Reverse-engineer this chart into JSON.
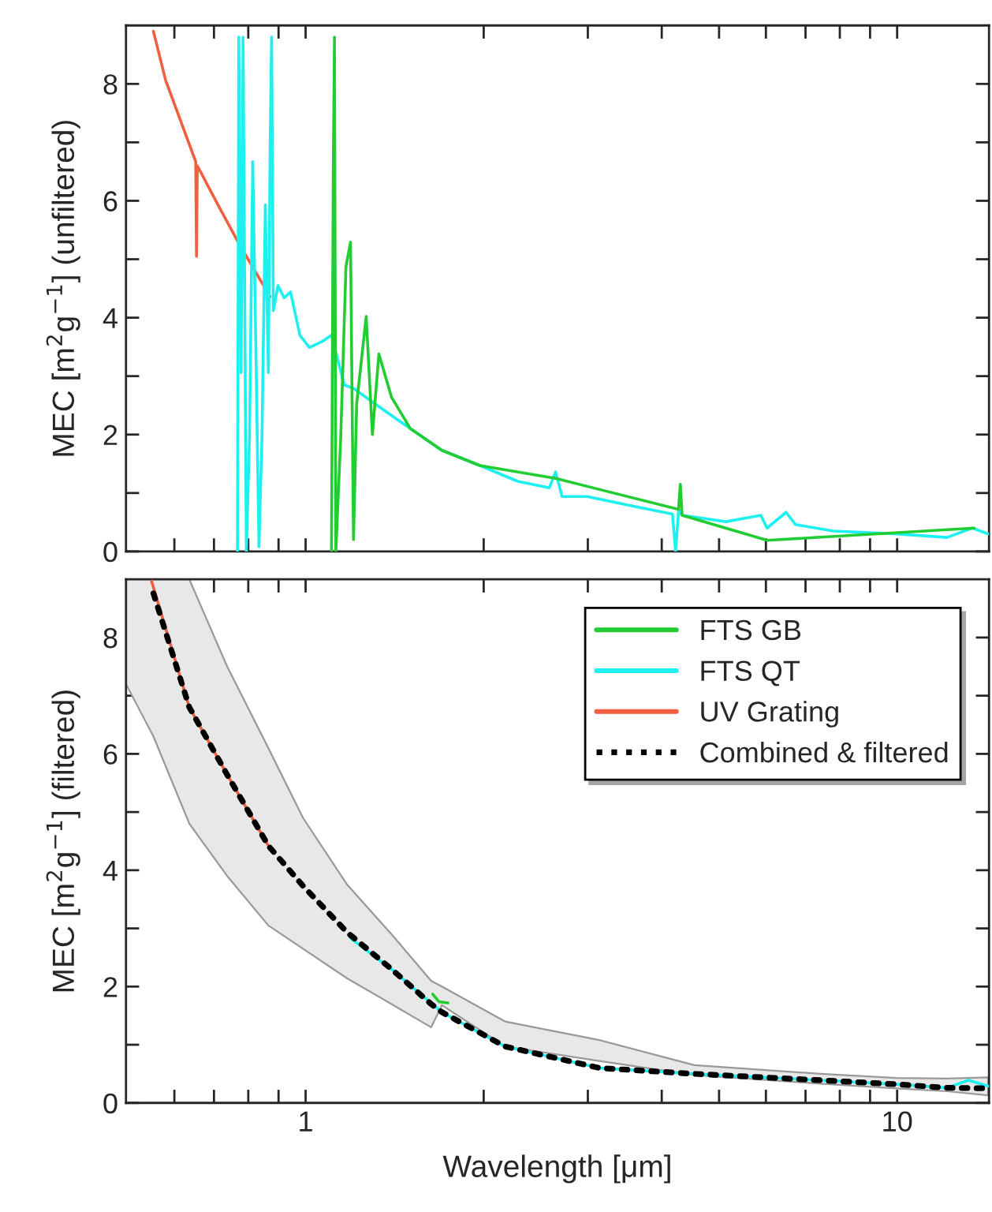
{
  "chart_data": [
    {
      "type": "line",
      "ylabel": "MEC [m$^{2}$g$^{−1}$] (unfiltered)",
      "log": "x",
      "tick_labels": "y",
      "legend": false,
      "grid": false,
      "xlim": [
        0.497,
        14.3
      ],
      "ylim": [
        0,
        9
      ],
      "xticks": [
        {
          "value": 0.6,
          "label": null
        },
        {
          "value": 0.7,
          "label": null
        },
        {
          "value": 0.8,
          "label": null
        },
        {
          "value": 0.9,
          "label": null
        },
        1,
        {
          "value": 2,
          "label": null
        },
        {
          "value": 3,
          "label": null
        },
        {
          "value": 4,
          "label": null
        },
        {
          "value": 5,
          "label": null
        },
        {
          "value": 6,
          "label": null
        },
        {
          "value": 7,
          "label": null
        },
        {
          "value": 8,
          "label": null
        },
        {
          "value": 9,
          "label": null
        },
        10
      ],
      "yticks": [
        0,
        {
          "value": 1,
          "label": null
        },
        2,
        {
          "value": 3,
          "label": null
        },
        4,
        {
          "value": 5,
          "label": null
        },
        6,
        {
          "value": 7,
          "label": null
        },
        8
      ],
      "series": [
        {
          "color": "#22cc33",
          "x": [
            1.106,
            1.114,
            1.119,
            1.125,
            1.147,
            1.17,
            1.191,
            1.205,
            1.22,
            1.266,
            1.297,
            1.33,
            1.397,
            1.504,
            1.7,
            1.971,
            2.646,
            4.27,
            4.3,
            4.33,
            6.03,
            13.5
          ],
          "values": [
            0,
            6.67,
            8.8,
            0,
            2.0,
            4.87,
            5.29,
            0.2,
            2.53,
            4.02,
            2.0,
            3.38,
            2.64,
            2.1,
            1.73,
            1.47,
            1.25,
            0.72,
            1.15,
            0.62,
            0.19,
            0.4
          ]
        },
        {
          "color": "#1ef0f0",
          "x": [
            0.767,
            0.771,
            0.778,
            0.784,
            0.794,
            0.804,
            0.814,
            0.824,
            0.834,
            0.844,
            0.855,
            0.865,
            0.871,
            0.876,
            0.882,
            0.898,
            0.92,
            0.943,
            0.978,
            1.015,
            1.066,
            1.106,
            1.134,
            1.162,
            1.205,
            1.33,
            1.504,
            1.7,
            1.971,
            2.284,
            2.582,
            2.646,
            2.713,
            2.992,
            3.554,
            4.17,
            4.221,
            4.273,
            4.326,
            5.137,
            5.883,
            6.028,
            6.49,
            6.733,
            7.8,
            9.97,
            12.14,
            13.4,
            14.25
          ],
          "values": [
            0,
            8.8,
            3.06,
            8.8,
            0,
            2.0,
            6.67,
            3.49,
            0.08,
            2.0,
            5.93,
            3.06,
            6.89,
            8.8,
            4.12,
            4.55,
            4.34,
            4.44,
            3.7,
            3.49,
            3.59,
            3.7,
            3.27,
            2.85,
            2.79,
            2.48,
            2.1,
            1.73,
            1.47,
            1.2,
            1.09,
            1.36,
            0.94,
            0.94,
            0.78,
            0.64,
            0,
            0.72,
            0.62,
            0.51,
            0.62,
            0.4,
            0.67,
            0.46,
            0.35,
            0.3,
            0.24,
            0.4,
            0.3
          ]
        },
        {
          "color": "#f06040",
          "x": [
            0.553,
            0.58,
            0.652,
            0.654,
            0.656,
            0.711,
            0.774,
            0.871
          ],
          "values": [
            8.9,
            8.06,
            6.67,
            5.05,
            6.6,
            5.93,
            5.24,
            4.36
          ]
        }
      ]
    },
    {
      "type": "line",
      "xlabel": "Wavelength [μm]",
      "ylabel": "MEC [m$^{2}$g$^{−1}$] (filtered)",
      "log": "x",
      "legend": "top right",
      "grid": false,
      "xlim": [
        0.497,
        14.3
      ],
      "ylim": [
        0,
        9
      ],
      "xticks": [
        {
          "value": 0.6,
          "label": null
        },
        {
          "value": 0.7,
          "label": null
        },
        {
          "value": 0.8,
          "label": null
        },
        {
          "value": 0.9,
          "label": null
        },
        1,
        {
          "value": 2,
          "label": null
        },
        {
          "value": 3,
          "label": null
        },
        {
          "value": 4,
          "label": null
        },
        {
          "value": 5,
          "label": null
        },
        {
          "value": 6,
          "label": null
        },
        {
          "value": 7,
          "label": null
        },
        {
          "value": 8,
          "label": null
        },
        {
          "value": 9,
          "label": null
        },
        10
      ],
      "yticks": [
        0,
        {
          "value": 1,
          "label": null
        },
        2,
        {
          "value": 3,
          "label": null
        },
        4,
        {
          "value": 5,
          "label": null
        },
        6,
        {
          "value": 7,
          "label": null
        },
        8
      ],
      "series": [
        {
          "name": "FTS GB",
          "color": "#22cc33",
          "x": [
            1.64,
            1.68,
            1.74
          ],
          "values": [
            1.87,
            1.74,
            1.72
          ]
        },
        {
          "name": "FTS QT",
          "color": "#1ef0f0",
          "x": [
            1.191,
            1.397,
            1.7,
            2.174,
            3.14,
            4.54,
            7.42,
            9.97,
            12.14,
            13.2,
            14.25
          ],
          "values": [
            2.83,
            2.3,
            1.56,
            0.97,
            0.6,
            0.5,
            0.39,
            0.32,
            0.26,
            0.39,
            0.29
          ]
        },
        {
          "name": "UV Grating",
          "color": "#f06040",
          "x": [
            0.549,
            0.636,
            0.737,
            0.865
          ],
          "values": [
            8.97,
            6.8,
            5.64,
            4.42
          ]
        },
        {
          "name": "Combined & filtered",
          "color": "#000000",
          "line_style": "dotted",
          "x": [
            0.497,
            0.553,
            0.636,
            0.737,
            0.865,
            0.99,
            1.176,
            1.397,
            1.63,
            1.7,
            2.174,
            3.14,
            4.54,
            7.42,
            9.97,
            12.14,
            14.25
          ],
          "values": [
            null,
            8.76,
            6.8,
            5.64,
            4.42,
            3.73,
            2.93,
            2.3,
            1.7,
            1.56,
            0.97,
            0.6,
            0.5,
            0.39,
            0.32,
            0.26,
            0.25
          ],
          "upper": [
            9,
            9,
            9,
            7.5,
            6.1,
            4.9,
            3.75,
            2.9,
            2.1,
            2.0,
            1.4,
            1.08,
            0.65,
            0.5,
            0.43,
            0.42,
            0.44
          ],
          "lower": [
            7.2,
            6.3,
            4.8,
            3.9,
            3.05,
            2.65,
            2.14,
            1.7,
            1.3,
            1.68,
            0.97,
            0.72,
            0.48,
            0.33,
            0.25,
            0.2,
            0.13
          ]
        }
      ]
    }
  ]
}
